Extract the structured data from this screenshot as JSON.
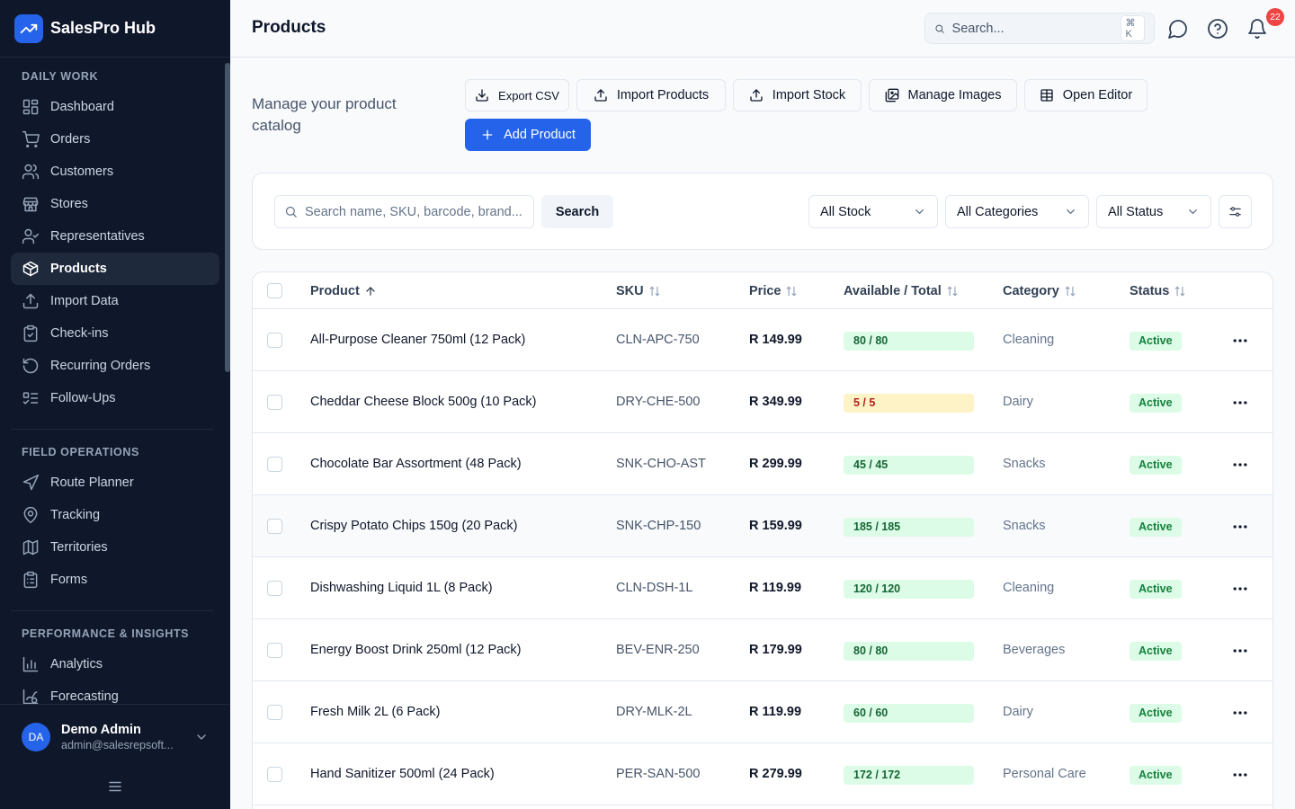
{
  "app": {
    "name": "SalesPro Hub"
  },
  "sidebar": {
    "sections": [
      {
        "title": "DAILY WORK",
        "items": [
          {
            "label": "Dashboard",
            "icon": "layout-dashboard-icon"
          },
          {
            "label": "Orders",
            "icon": "shopping-cart-icon"
          },
          {
            "label": "Customers",
            "icon": "users-icon"
          },
          {
            "label": "Stores",
            "icon": "store-icon"
          },
          {
            "label": "Representatives",
            "icon": "user-check-icon"
          },
          {
            "label": "Products",
            "icon": "package-icon",
            "active": true
          },
          {
            "label": "Import Data",
            "icon": "upload-icon"
          },
          {
            "label": "Check-ins",
            "icon": "clipboard-check-icon"
          },
          {
            "label": "Recurring Orders",
            "icon": "refresh-icon"
          },
          {
            "label": "Follow-Ups",
            "icon": "list-todo-icon"
          }
        ]
      },
      {
        "title": "FIELD OPERATIONS",
        "items": [
          {
            "label": "Route Planner",
            "icon": "navigation-icon"
          },
          {
            "label": "Tracking",
            "icon": "map-pin-icon"
          },
          {
            "label": "Territories",
            "icon": "map-icon"
          },
          {
            "label": "Forms",
            "icon": "clipboard-list-icon"
          }
        ]
      },
      {
        "title": "PERFORMANCE & INSIGHTS",
        "items": [
          {
            "label": "Analytics",
            "icon": "bar-chart-icon"
          },
          {
            "label": "Forecasting",
            "icon": "chart-spline-icon"
          }
        ]
      }
    ],
    "user": {
      "initials": "DA",
      "name": "Demo Admin",
      "email": "admin@salesrepsoft..."
    }
  },
  "header": {
    "title": "Products",
    "search_placeholder": "Search...",
    "search_shortcut": "⌘ K",
    "notifications_count": "22"
  },
  "toolbar": {
    "subtitle": "Manage your product catalog",
    "export_csv": "Export CSV",
    "import_products": "Import Products",
    "import_stock": "Import Stock",
    "manage_images": "Manage Images",
    "open_editor": "Open Editor",
    "add_product": "Add Product"
  },
  "filters": {
    "search_placeholder": "Search name, SKU, barcode, brand...",
    "search_button": "Search",
    "stock": "All Stock",
    "categories": "All Categories",
    "status": "All Status"
  },
  "table": {
    "columns": {
      "product": "Product",
      "sku": "SKU",
      "price": "Price",
      "available": "Available / Total",
      "category": "Category",
      "status": "Status"
    },
    "rows": [
      {
        "name": "All-Purpose Cleaner 750ml (12 Pack)",
        "sku": "CLN-APC-750",
        "price": "R 149.99",
        "stock": "80 / 80",
        "stock_level": "ok",
        "category": "Cleaning",
        "status": "Active"
      },
      {
        "name": "Cheddar Cheese Block 500g (10 Pack)",
        "sku": "DRY-CHE-500",
        "price": "R 349.99",
        "stock": "5 / 5",
        "stock_level": "low",
        "category": "Dairy",
        "status": "Active"
      },
      {
        "name": "Chocolate Bar Assortment (48 Pack)",
        "sku": "SNK-CHO-AST",
        "price": "R 299.99",
        "stock": "45 / 45",
        "stock_level": "ok",
        "category": "Snacks",
        "status": "Active"
      },
      {
        "name": "Crispy Potato Chips 150g (20 Pack)",
        "sku": "SNK-CHP-150",
        "price": "R 159.99",
        "stock": "185 / 185",
        "stock_level": "ok",
        "category": "Snacks",
        "status": "Active"
      },
      {
        "name": "Dishwashing Liquid 1L (8 Pack)",
        "sku": "CLN-DSH-1L",
        "price": "R 119.99",
        "stock": "120 / 120",
        "stock_level": "ok",
        "category": "Cleaning",
        "status": "Active"
      },
      {
        "name": "Energy Boost Drink 250ml (12 Pack)",
        "sku": "BEV-ENR-250",
        "price": "R 179.99",
        "stock": "80 / 80",
        "stock_level": "ok",
        "category": "Beverages",
        "status": "Active"
      },
      {
        "name": "Fresh Milk 2L (6 Pack)",
        "sku": "DRY-MLK-2L",
        "price": "R 119.99",
        "stock": "60 / 60",
        "stock_level": "ok",
        "category": "Dairy",
        "status": "Active"
      },
      {
        "name": "Hand Sanitizer 500ml (24 Pack)",
        "sku": "PER-SAN-500",
        "price": "R 279.99",
        "stock": "172 / 172",
        "stock_level": "ok",
        "category": "Personal Care",
        "status": "Active"
      }
    ]
  },
  "colors": {
    "sidebar": "#0f172a",
    "accent": "#2563eb",
    "active_bg": "#dcfce7",
    "active_text": "#15803d",
    "low_bg": "#fef3c7",
    "low_text": "#b91c1c"
  }
}
